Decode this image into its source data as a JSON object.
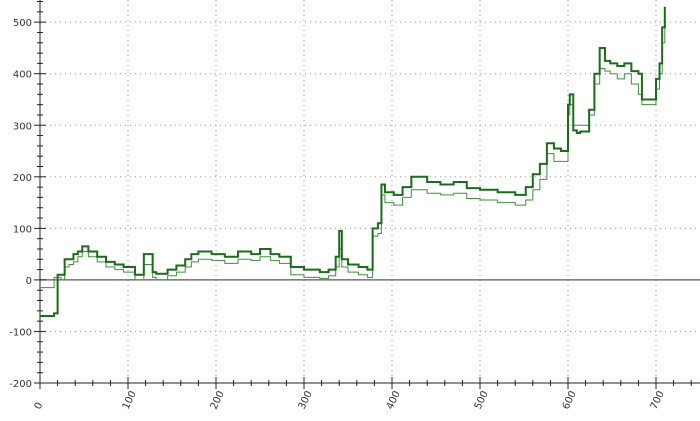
{
  "chart_data": {
    "type": "line",
    "title": "",
    "xlabel": "",
    "ylabel": "",
    "xlim": [
      0,
      750
    ],
    "ylim": [
      -200,
      543
    ],
    "x_ticks": [
      "0",
      "100",
      "200",
      "300",
      "400",
      "500",
      "600",
      "700"
    ],
    "y_ticks": [
      "500",
      "400",
      "300",
      "200",
      "100",
      "0",
      "-100",
      "-200"
    ],
    "grid": true,
    "step": true,
    "colors": {
      "series1": "#1c6b1c",
      "series2": "#3f8f3f",
      "zero_line": "#555555",
      "grid": "#999999"
    },
    "series": [
      {
        "x": [
          0,
          16,
          20,
          24,
          28,
          33,
          38,
          43,
          48,
          55,
          65,
          75,
          85,
          95,
          108,
          118,
          128,
          132,
          145,
          155,
          165,
          172,
          180,
          195,
          210,
          225,
          240,
          250,
          262,
          272,
          285,
          300,
          318,
          328,
          336,
          340,
          343,
          350,
          362,
          372,
          378,
          384,
          388,
          392,
          402,
          412,
          422,
          440,
          455,
          470,
          485,
          500,
          520,
          540,
          552,
          560,
          568,
          576,
          584,
          592,
          600,
          602,
          606,
          610,
          614,
          624,
          630,
          636,
          642,
          648,
          656,
          664,
          672,
          680,
          684,
          694,
          700,
          704,
          707,
          710
        ],
        "y": [
          -70,
          -65,
          10,
          10,
          40,
          40,
          50,
          55,
          65,
          55,
          45,
          35,
          30,
          25,
          10,
          50,
          15,
          12,
          20,
          28,
          40,
          50,
          55,
          50,
          45,
          55,
          50,
          60,
          50,
          45,
          25,
          20,
          15,
          20,
          45,
          95,
          40,
          30,
          25,
          20,
          100,
          110,
          185,
          170,
          165,
          180,
          200,
          190,
          185,
          190,
          178,
          175,
          170,
          165,
          180,
          205,
          225,
          265,
          255,
          250,
          340,
          360,
          290,
          285,
          288,
          330,
          400,
          450,
          425,
          420,
          415,
          420,
          405,
          400,
          350,
          350,
          390,
          420,
          490,
          530
        ]
      },
      {
        "x": [
          0,
          16,
          20,
          24,
          28,
          33,
          38,
          43,
          48,
          55,
          65,
          75,
          85,
          95,
          108,
          118,
          128,
          132,
          145,
          155,
          165,
          172,
          180,
          195,
          210,
          225,
          240,
          250,
          262,
          272,
          285,
          300,
          318,
          328,
          336,
          340,
          343,
          350,
          362,
          372,
          378,
          384,
          388,
          392,
          402,
          412,
          422,
          440,
          455,
          470,
          485,
          500,
          520,
          540,
          552,
          560,
          568,
          576,
          584,
          592,
          600,
          602,
          606,
          610,
          614,
          624,
          630,
          636,
          642,
          648,
          656,
          664,
          672,
          680,
          684,
          694,
          700,
          704,
          707,
          710
        ],
        "y": [
          -15,
          5,
          5,
          0,
          25,
          30,
          35,
          45,
          55,
          45,
          35,
          25,
          20,
          15,
          0,
          30,
          5,
          0,
          8,
          15,
          25,
          35,
          40,
          38,
          32,
          40,
          38,
          45,
          38,
          32,
          10,
          5,
          3,
          8,
          25,
          60,
          25,
          15,
          10,
          5,
          85,
          90,
          165,
          150,
          145,
          160,
          175,
          168,
          165,
          168,
          158,
          155,
          150,
          145,
          155,
          175,
          195,
          245,
          230,
          230,
          320,
          340,
          300,
          300,
          300,
          320,
          380,
          410,
          405,
          400,
          390,
          400,
          380,
          360,
          340,
          340,
          370,
          400,
          460,
          505
        ]
      }
    ]
  }
}
